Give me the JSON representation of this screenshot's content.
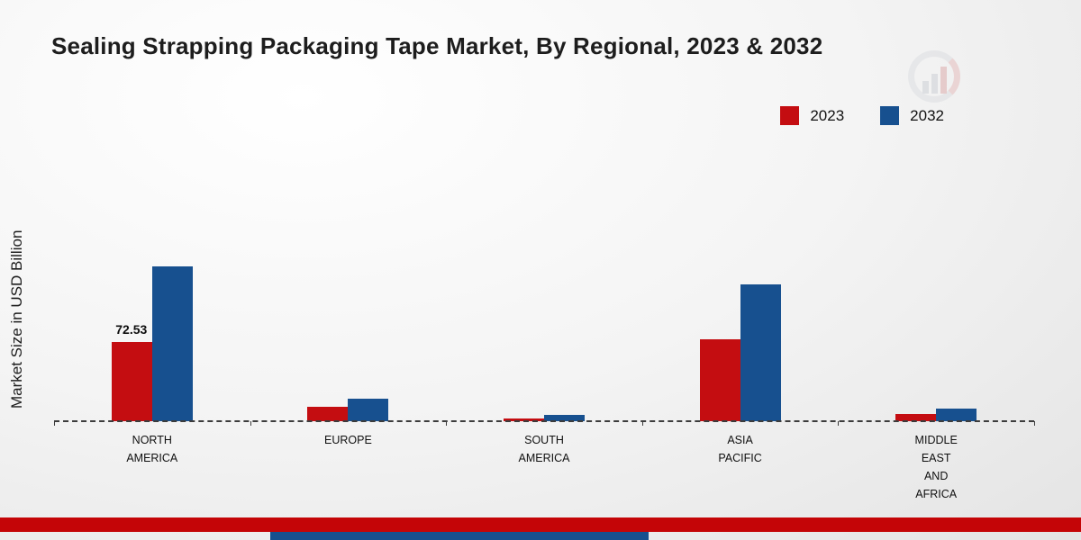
{
  "title": "Sealing Strapping Packaging Tape Market, By Regional, 2023 & 2032",
  "ylabel": "Market Size in USD Billion",
  "legend": [
    {
      "label": "2023",
      "color": "#c40d11"
    },
    {
      "label": "2032",
      "color": "#17508f"
    }
  ],
  "chart_data": {
    "type": "bar",
    "title": "Sealing Strapping Packaging Tape Market, By Regional, 2023 & 2032",
    "xlabel": "",
    "ylabel": "Market Size in USD Billion",
    "categories": [
      "NORTH AMERICA",
      "EUROPE",
      "SOUTH AMERICA",
      "ASIA PACIFIC",
      "MIDDLE EAST AND AFRICA"
    ],
    "series": [
      {
        "name": "2023",
        "color": "#c40d11",
        "values": [
          72.53,
          13,
          2.5,
          75,
          6.5
        ]
      },
      {
        "name": "2032",
        "color": "#17508f",
        "values": [
          142,
          21,
          5.5,
          126,
          11.5
        ]
      }
    ],
    "annotations": [
      {
        "category_index": 0,
        "series_index": 0,
        "text": "72.53"
      }
    ],
    "ylim": [
      0,
      160
    ],
    "baseline_dashed": true,
    "legend_position": "top-right",
    "grid": false
  }
}
